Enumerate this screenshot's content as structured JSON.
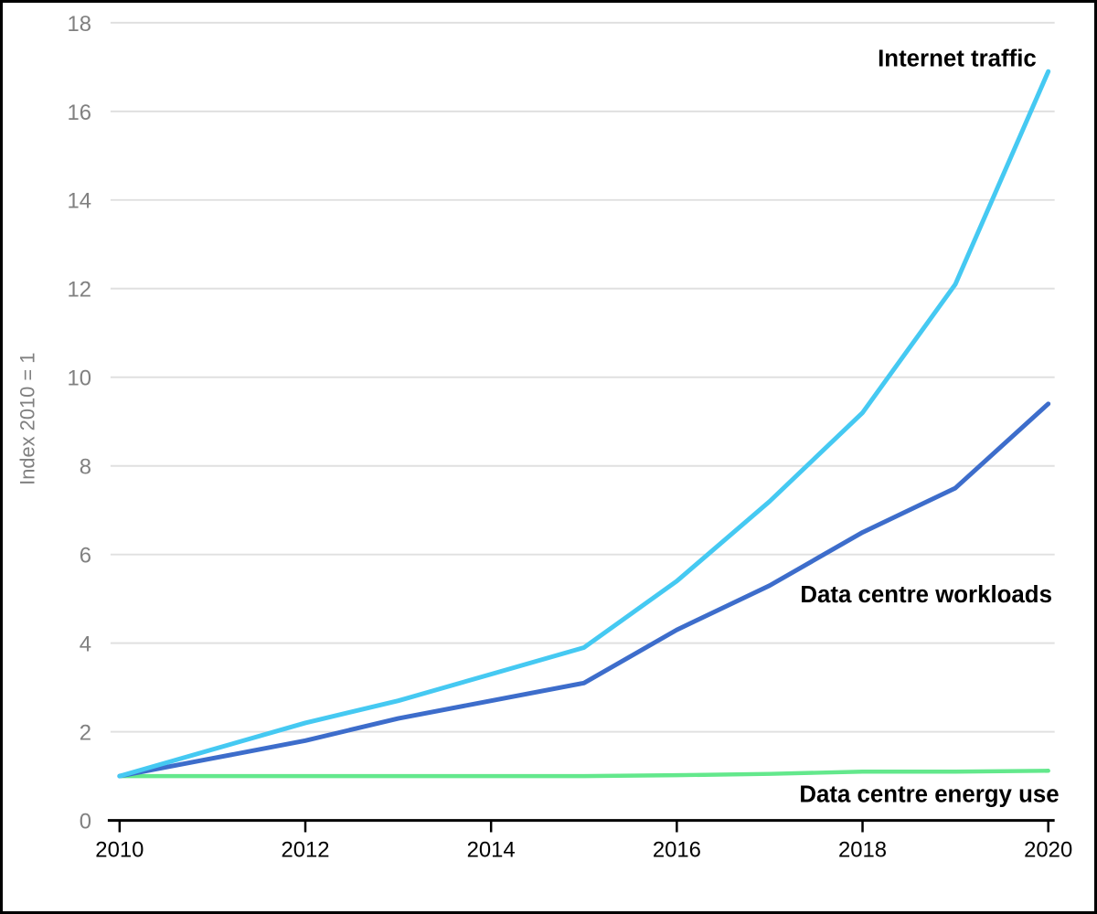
{
  "chart_data": {
    "type": "line",
    "title": "",
    "ylabel": "Index 2010 = 1",
    "xlabel": "",
    "x": [
      2010,
      2011,
      2012,
      2013,
      2014,
      2015,
      2016,
      2017,
      2018,
      2019,
      2020
    ],
    "xlim": [
      2010,
      2020
    ],
    "ylim": [
      0,
      18
    ],
    "xticks": [
      2010,
      2012,
      2014,
      2016,
      2018,
      2020
    ],
    "yticks": [
      0,
      2,
      4,
      6,
      8,
      10,
      12,
      14,
      16,
      18
    ],
    "grid": "horizontal",
    "legend_position": "inline-annotations",
    "colors": {
      "axis": "#000000",
      "gridline": "#e0e0e0",
      "xtick_label": "#000000",
      "ytick_label": "#808080"
    },
    "series": [
      {
        "name": "Data centre energy use",
        "color": "#63e88c",
        "line_width": 4.5,
        "values": [
          1.0,
          1.0,
          1.0,
          1.0,
          1.0,
          1.0,
          1.02,
          1.05,
          1.1,
          1.1,
          1.12
        ],
        "label": {
          "text": "Data centre energy use",
          "x": 876,
          "y": 880,
          "anchor": "start"
        }
      },
      {
        "name": "Data centre workloads",
        "color": "#3d6dcb",
        "line_width": 5,
        "values": [
          1.0,
          1.4,
          1.8,
          2.3,
          2.7,
          3.1,
          4.3,
          5.3,
          6.5,
          7.5,
          9.4
        ],
        "label": {
          "text": "Data centre workloads",
          "x": 877,
          "y": 660,
          "anchor": "start"
        }
      },
      {
        "name": "Internet traffic",
        "color": "#45c9f2",
        "line_width": 5,
        "values": [
          1.0,
          1.6,
          2.2,
          2.7,
          3.3,
          3.9,
          5.4,
          7.2,
          9.2,
          12.1,
          16.9
        ],
        "label": {
          "text": "Internet traffic",
          "x": 1137,
          "y": 70,
          "anchor": "end"
        }
      }
    ]
  }
}
